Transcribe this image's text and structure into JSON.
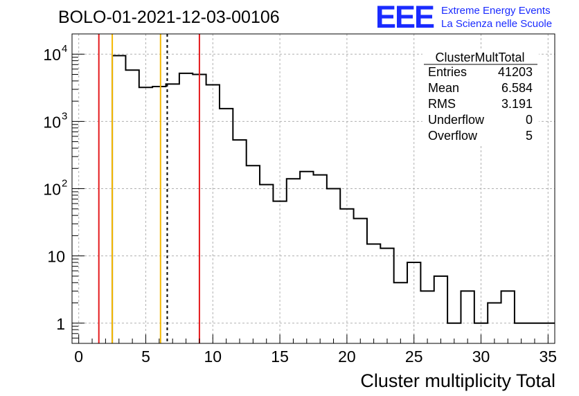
{
  "header": {
    "run_title": "BOLO-01-2021-12-03-00106",
    "logo_text": "EEE",
    "logo_line1": "Extreme Energy Events",
    "logo_line2": "La Scienza nelle Scuole"
  },
  "stats_box": {
    "title": "ClusterMultTotal",
    "rows": [
      {
        "label": "Entries",
        "value": "41203"
      },
      {
        "label": "Mean",
        "value": "6.584"
      },
      {
        "label": "RMS",
        "value": "3.191"
      },
      {
        "label": "Underflow",
        "value": "0"
      },
      {
        "label": "Overflow",
        "value": "5"
      }
    ]
  },
  "colors": {
    "histogram": "#000000",
    "red_lines": "#e41a1c",
    "yellow_lines": "#f5b800",
    "grid": "#b0b0b0",
    "logo": "#1a2bff"
  },
  "chart_data": {
    "type": "histogram",
    "xlabel": "Cluster multiplicity Total",
    "ylabel": "",
    "xlim": [
      -0.5,
      35.5
    ],
    "ylim": [
      0.5,
      20000
    ],
    "y_scale": "log",
    "grid": true,
    "bin_width": 1,
    "bin_lefts": [
      2.5,
      3.5,
      4.5,
      5.5,
      6.5,
      7.5,
      8.5,
      9.5,
      10.5,
      11.5,
      12.5,
      13.5,
      14.5,
      15.5,
      16.5,
      17.5,
      18.5,
      19.5,
      20.5,
      21.5,
      22.5,
      23.5,
      24.5,
      25.5,
      26.5,
      27.5,
      28.5,
      29.5,
      30.5,
      31.5,
      32.5,
      33.5,
      34.5
    ],
    "counts": [
      9500,
      5800,
      3200,
      3300,
      3600,
      5200,
      5000,
      3500,
      1550,
      530,
      220,
      115,
      65,
      140,
      180,
      160,
      100,
      50,
      36,
      15,
      13,
      4,
      8,
      3,
      5,
      1,
      3,
      1,
      2,
      3,
      1,
      1,
      1
    ],
    "x_ticks": [
      0,
      5,
      10,
      15,
      20,
      25,
      30,
      35
    ],
    "x_tick_labels": [
      "0",
      "5",
      "10",
      "15",
      "20",
      "25",
      "30",
      "35"
    ],
    "y_ticks": [
      1,
      10,
      100,
      1000,
      10000
    ],
    "y_tick_labels": [
      {
        "base": "1",
        "exp": ""
      },
      {
        "base": "10",
        "exp": ""
      },
      {
        "base": "10",
        "exp": "2"
      },
      {
        "base": "10",
        "exp": "3"
      },
      {
        "base": "10",
        "exp": "4"
      }
    ],
    "vertical_lines": [
      {
        "x": 1.5,
        "color": "red",
        "style": "solid"
      },
      {
        "x": 2.5,
        "color": "yellow",
        "style": "solid"
      },
      {
        "x": 6.1,
        "color": "yellow",
        "style": "solid"
      },
      {
        "x": 6.6,
        "color": "black",
        "style": "dashed"
      },
      {
        "x": 9.0,
        "color": "red",
        "style": "solid"
      }
    ]
  }
}
